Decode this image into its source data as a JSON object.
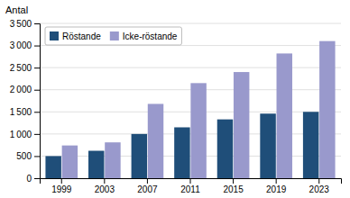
{
  "chart_data": {
    "type": "bar",
    "y_label": "Antal",
    "categories": [
      "1999",
      "2003",
      "2007",
      "2011",
      "2015",
      "2019",
      "2023"
    ],
    "series": [
      {
        "name": "Röstande",
        "color": "#1f4e79",
        "values": [
          500,
          620,
          1000,
          1150,
          1330,
          1460,
          1500
        ]
      },
      {
        "name": "Icke-röstande",
        "color": "#9999cc",
        "values": [
          740,
          810,
          1680,
          2150,
          2400,
          2820,
          3100
        ]
      }
    ],
    "ylim": [
      0,
      3500
    ],
    "yticks": [
      0,
      500,
      {
        "value": 1000,
        "label": "1 000"
      },
      {
        "value": 1500,
        "label": "1 500"
      },
      {
        "value": 2000,
        "label": "2 000"
      },
      {
        "value": 2500,
        "label": "2 500"
      },
      {
        "value": 3000,
        "label": "3 000"
      },
      {
        "value": 3500,
        "label": "3 500"
      }
    ],
    "grid": true,
    "legend": "upper left"
  }
}
